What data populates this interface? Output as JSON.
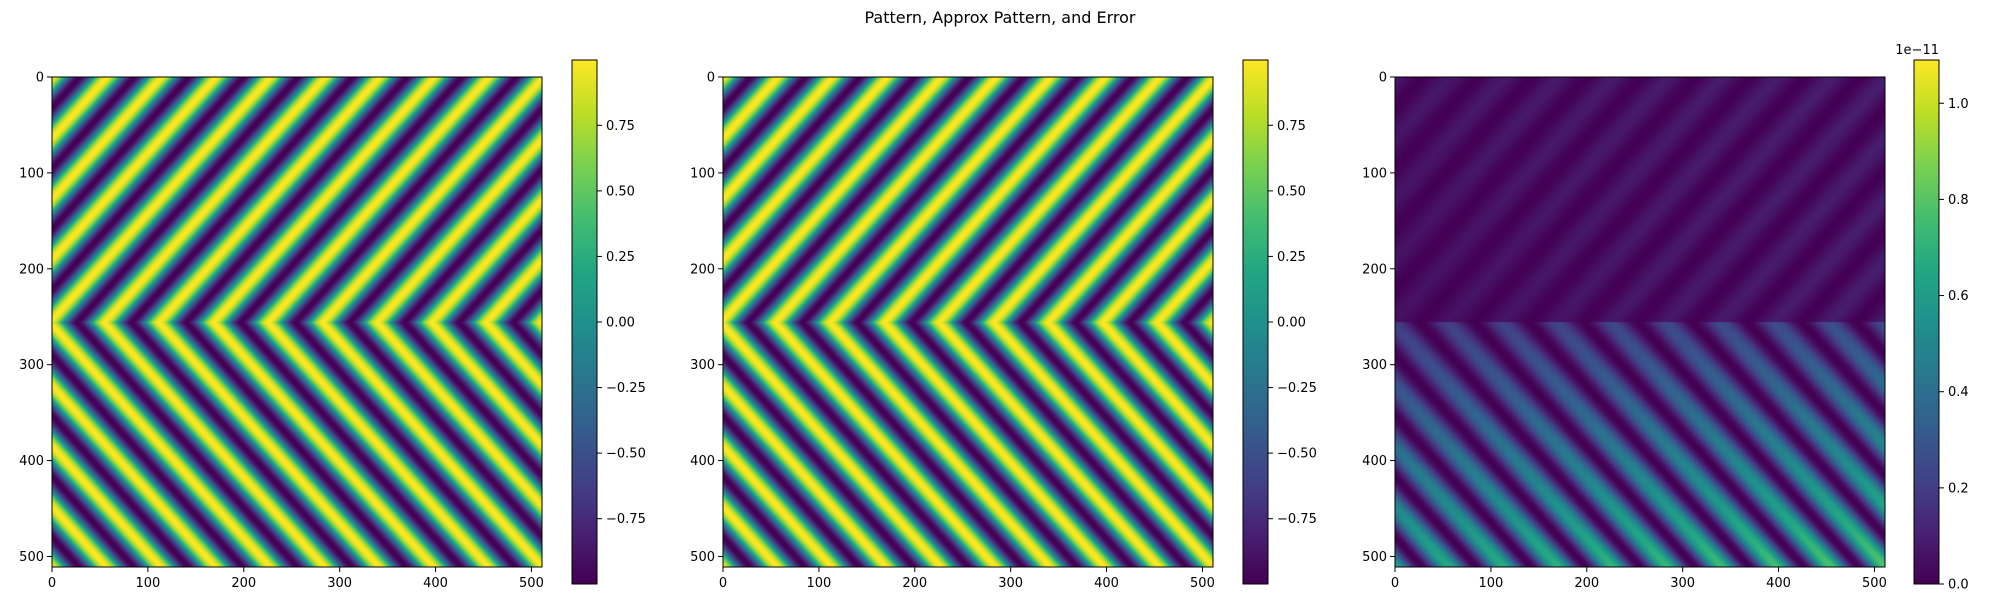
{
  "figure": {
    "title": "Pattern, Approx Pattern, and Error"
  },
  "chart_data": [
    {
      "type": "heatmap",
      "title": "",
      "xlabel": "",
      "ylabel": "",
      "colormap": "viridis",
      "image_size": [
        512,
        512
      ],
      "xlim": [
        0,
        511
      ],
      "ylim": [
        511,
        0
      ],
      "xticks": [
        0,
        100,
        200,
        300,
        400,
        500
      ],
      "yticks": [
        0,
        100,
        200,
        300,
        400,
        500
      ],
      "xtick_labels": [
        "0",
        "100",
        "200",
        "300",
        "400",
        "500"
      ],
      "ytick_labels": [
        "0",
        "100",
        "200",
        "300",
        "400",
        "500"
      ],
      "colorbar": {
        "vmin": -0.999,
        "vmax": 0.999,
        "ticks": [
          -0.75,
          -0.5,
          -0.25,
          0.0,
          0.25,
          0.5,
          0.75
        ],
        "tick_labels": [
          "−0.75",
          "−0.50",
          "−0.25",
          "0.00",
          "0.25",
          "0.50",
          "0.75"
        ],
        "offset_label": ""
      },
      "pattern": {
        "kind": "chevron",
        "apex_row": 256,
        "stripe_period_x": 57,
        "direction": "pointing-left"
      }
    },
    {
      "type": "heatmap",
      "title": "",
      "xlabel": "",
      "ylabel": "",
      "colormap": "viridis",
      "image_size": [
        512,
        512
      ],
      "xlim": [
        0,
        511
      ],
      "ylim": [
        511,
        0
      ],
      "xticks": [
        0,
        100,
        200,
        300,
        400,
        500
      ],
      "yticks": [
        0,
        100,
        200,
        300,
        400,
        500
      ],
      "xtick_labels": [
        "0",
        "100",
        "200",
        "300",
        "400",
        "500"
      ],
      "ytick_labels": [
        "0",
        "100",
        "200",
        "300",
        "400",
        "500"
      ],
      "colorbar": {
        "vmin": -0.999,
        "vmax": 0.999,
        "ticks": [
          -0.75,
          -0.5,
          -0.25,
          0.0,
          0.25,
          0.5,
          0.75
        ],
        "tick_labels": [
          "−0.75",
          "−0.50",
          "−0.25",
          "0.00",
          "0.25",
          "0.50",
          "0.75"
        ],
        "offset_label": ""
      },
      "pattern": {
        "kind": "chevron",
        "apex_row": 256,
        "stripe_period_x": 57,
        "direction": "pointing-left"
      }
    },
    {
      "type": "heatmap",
      "title": "",
      "xlabel": "",
      "ylabel": "",
      "colormap": "viridis",
      "image_size": [
        512,
        512
      ],
      "xlim": [
        0,
        511
      ],
      "ylim": [
        511,
        0
      ],
      "xticks": [
        0,
        100,
        200,
        300,
        400,
        500
      ],
      "yticks": [
        0,
        100,
        200,
        300,
        400,
        500
      ],
      "xtick_labels": [
        "0",
        "100",
        "200",
        "300",
        "400",
        "500"
      ],
      "ytick_labels": [
        "0",
        "100",
        "200",
        "300",
        "400",
        "500"
      ],
      "colorbar": {
        "vmin": 0.0,
        "vmax": 1.09,
        "ticks": [
          0.0,
          0.2,
          0.4,
          0.6,
          0.8,
          1.0
        ],
        "tick_labels": [
          "0.0",
          "0.2",
          "0.4",
          "0.6",
          "0.8",
          "1.0"
        ],
        "offset_label": "1e−11"
      },
      "pattern": {
        "kind": "error",
        "apex_row": 256,
        "stripe_period_x": 57,
        "direction": "pointing-left",
        "max_brightness": 0.7
      }
    }
  ]
}
